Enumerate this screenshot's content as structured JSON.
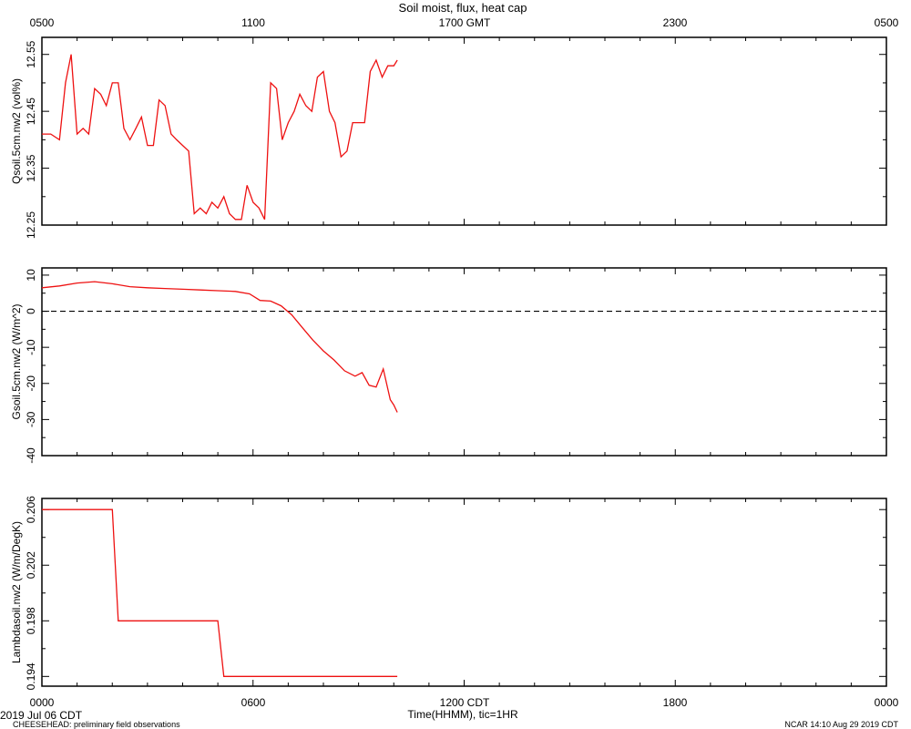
{
  "title": "Soil moist, flux, heat cap",
  "top_axis": {
    "ticks": [
      "0500",
      "1100",
      "1700 GMT",
      "2300",
      "0500"
    ]
  },
  "bottom_axis": {
    "ticks": [
      "0000",
      "0600",
      "1200 CDT",
      "1800",
      "0000"
    ],
    "label": "Time(HHMM), tic=1HR"
  },
  "footer": {
    "date": "2019 Jul 06 CDT",
    "project": "CHEESEHEAD: preliminary field observations",
    "credit": "NCAR 14:10 Aug 29 2019 CDT"
  },
  "colors": {
    "series": "#ee1111",
    "axis": "#000000",
    "zero_line": "#000000"
  },
  "chart_data": [
    {
      "type": "line",
      "name": "Qsoil.5cm.nw2",
      "ylabel": "Qsoil.5cm.nw2 (vol%)",
      "x_unit": "hours since 0000 CDT",
      "xlim": [
        0,
        24
      ],
      "ylim": [
        12.25,
        12.58
      ],
      "yticks": [
        12.25,
        12.35,
        12.45,
        12.55
      ],
      "ytick_labels": [
        "12.25",
        "12.35",
        "12.45",
        "12.55"
      ],
      "x": [
        0,
        0.25,
        0.5,
        0.67,
        0.83,
        1.0,
        1.17,
        1.33,
        1.5,
        1.67,
        1.83,
        2.0,
        2.17,
        2.33,
        2.5,
        2.67,
        2.83,
        3.0,
        3.17,
        3.33,
        3.5,
        3.67,
        3.83,
        4.0,
        4.17,
        4.33,
        4.5,
        4.67,
        4.83,
        5.0,
        5.17,
        5.33,
        5.5,
        5.67,
        5.83,
        6.0,
        6.17,
        6.33,
        6.5,
        6.67,
        6.83,
        7.0,
        7.17,
        7.33,
        7.5,
        7.67,
        7.83,
        8.0,
        8.17,
        8.33,
        8.5,
        8.67,
        8.83,
        9.0,
        9.17,
        9.33,
        9.5,
        9.67,
        9.83,
        10.0,
        10.1
      ],
      "values": [
        12.41,
        12.41,
        12.4,
        12.5,
        12.55,
        12.41,
        12.42,
        12.41,
        12.49,
        12.48,
        12.46,
        12.5,
        12.5,
        12.42,
        12.4,
        12.42,
        12.44,
        12.39,
        12.39,
        12.47,
        12.46,
        12.41,
        12.4,
        12.39,
        12.38,
        12.27,
        12.28,
        12.27,
        12.29,
        12.28,
        12.3,
        12.27,
        12.26,
        12.26,
        12.32,
        12.29,
        12.28,
        12.26,
        12.5,
        12.49,
        12.4,
        12.43,
        12.45,
        12.48,
        12.46,
        12.45,
        12.51,
        12.52,
        12.45,
        12.43,
        12.37,
        12.38,
        12.43,
        12.43,
        12.43,
        12.52,
        12.54,
        12.51,
        12.53,
        12.53,
        12.54
      ]
    },
    {
      "type": "line",
      "name": "Gsoil.5cm.nw2",
      "ylabel": "Gsoil.5cm.nw2 (W/m^2)",
      "x_unit": "hours since 0000 CDT",
      "xlim": [
        0,
        24
      ],
      "ylim": [
        -40,
        12
      ],
      "yticks": [
        -40,
        -30,
        -20,
        -10,
        0,
        10
      ],
      "ytick_labels": [
        "-40",
        "-30",
        "-20",
        "-10",
        "0",
        "10"
      ],
      "zero_line": true,
      "x": [
        0,
        0.5,
        1.0,
        1.5,
        2.0,
        2.5,
        3.0,
        3.5,
        4.0,
        4.5,
        5.0,
        5.5,
        5.9,
        6.2,
        6.5,
        6.8,
        7.1,
        7.4,
        7.7,
        8.0,
        8.3,
        8.6,
        8.9,
        9.1,
        9.3,
        9.5,
        9.7,
        9.9,
        10.0,
        10.1
      ],
      "values": [
        6.5,
        7.0,
        7.8,
        8.2,
        7.6,
        6.8,
        6.5,
        6.3,
        6.1,
        5.9,
        5.7,
        5.5,
        4.8,
        3.0,
        2.8,
        1.5,
        -1.0,
        -4.5,
        -8.0,
        -11.0,
        -13.5,
        -16.5,
        -18.0,
        -17.0,
        -20.5,
        -21.0,
        -16.0,
        -24.5,
        -26.0,
        -28.0
      ]
    },
    {
      "type": "line",
      "name": "Lambdasoil.nw2",
      "ylabel": "Lambdasoil.nw2 (W/m/DegK)",
      "x_unit": "hours since 0000 CDT",
      "xlim": [
        0,
        24
      ],
      "ylim": [
        0.1933,
        0.2068
      ],
      "yticks": [
        0.194,
        0.198,
        0.202,
        0.206
      ],
      "ytick_labels": [
        "0.194",
        "0.198",
        "0.202",
        "0.206"
      ],
      "x": [
        0,
        2.0,
        2.17,
        5.0,
        5.17,
        10.1
      ],
      "values": [
        0.206,
        0.206,
        0.198,
        0.198,
        0.194,
        0.194
      ]
    }
  ]
}
